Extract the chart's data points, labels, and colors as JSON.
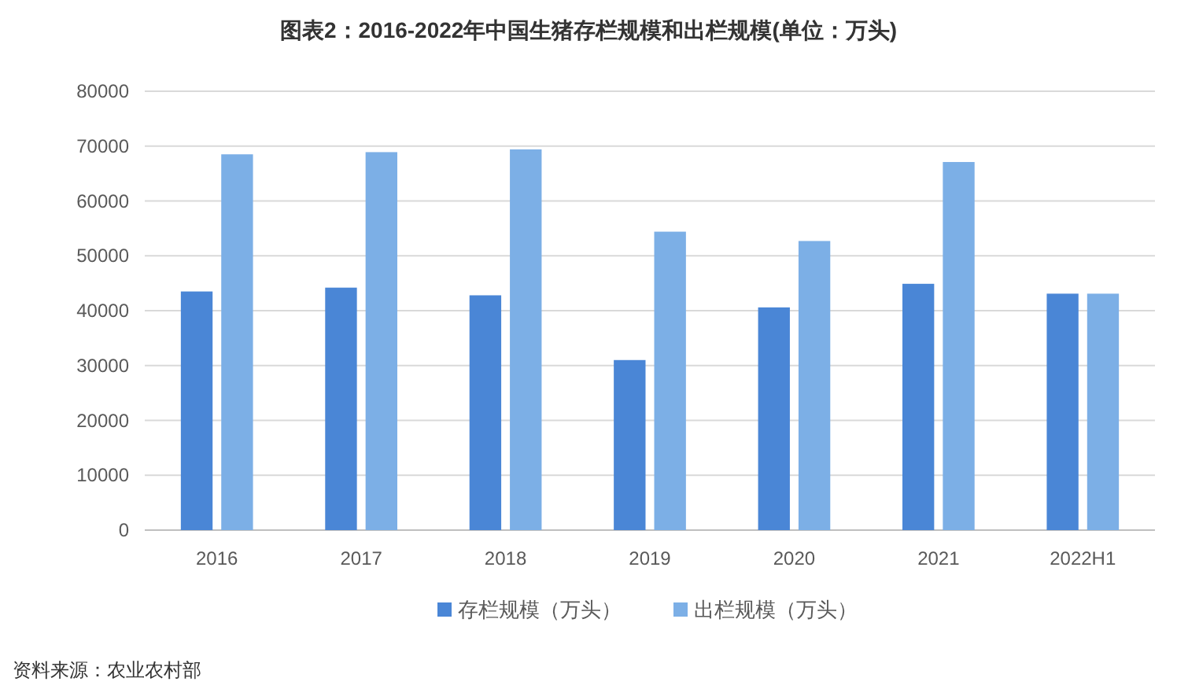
{
  "chart_data": {
    "type": "bar",
    "title": "图表2：2016-2022年中国生猪存栏规模和出栏规模(单位：万头)",
    "categories": [
      "2016",
      "2017",
      "2018",
      "2019",
      "2020",
      "2021",
      "2022H1"
    ],
    "series": [
      {
        "name": "存栏规模（万头）",
        "color": "#4a86d6",
        "values": [
          43500,
          44200,
          42800,
          31000,
          40600,
          44900,
          43100
        ]
      },
      {
        "name": "出栏规模（万头）",
        "color": "#7cafe6",
        "values": [
          68500,
          68900,
          69400,
          54400,
          52700,
          67100,
          43100
        ]
      }
    ],
    "ylim": [
      0,
      80000
    ],
    "yticks": [
      0,
      10000,
      20000,
      30000,
      40000,
      50000,
      60000,
      70000,
      80000
    ],
    "grid": "y",
    "legend": "bottom",
    "annotations": [
      "资料来源：农业农村部"
    ]
  }
}
